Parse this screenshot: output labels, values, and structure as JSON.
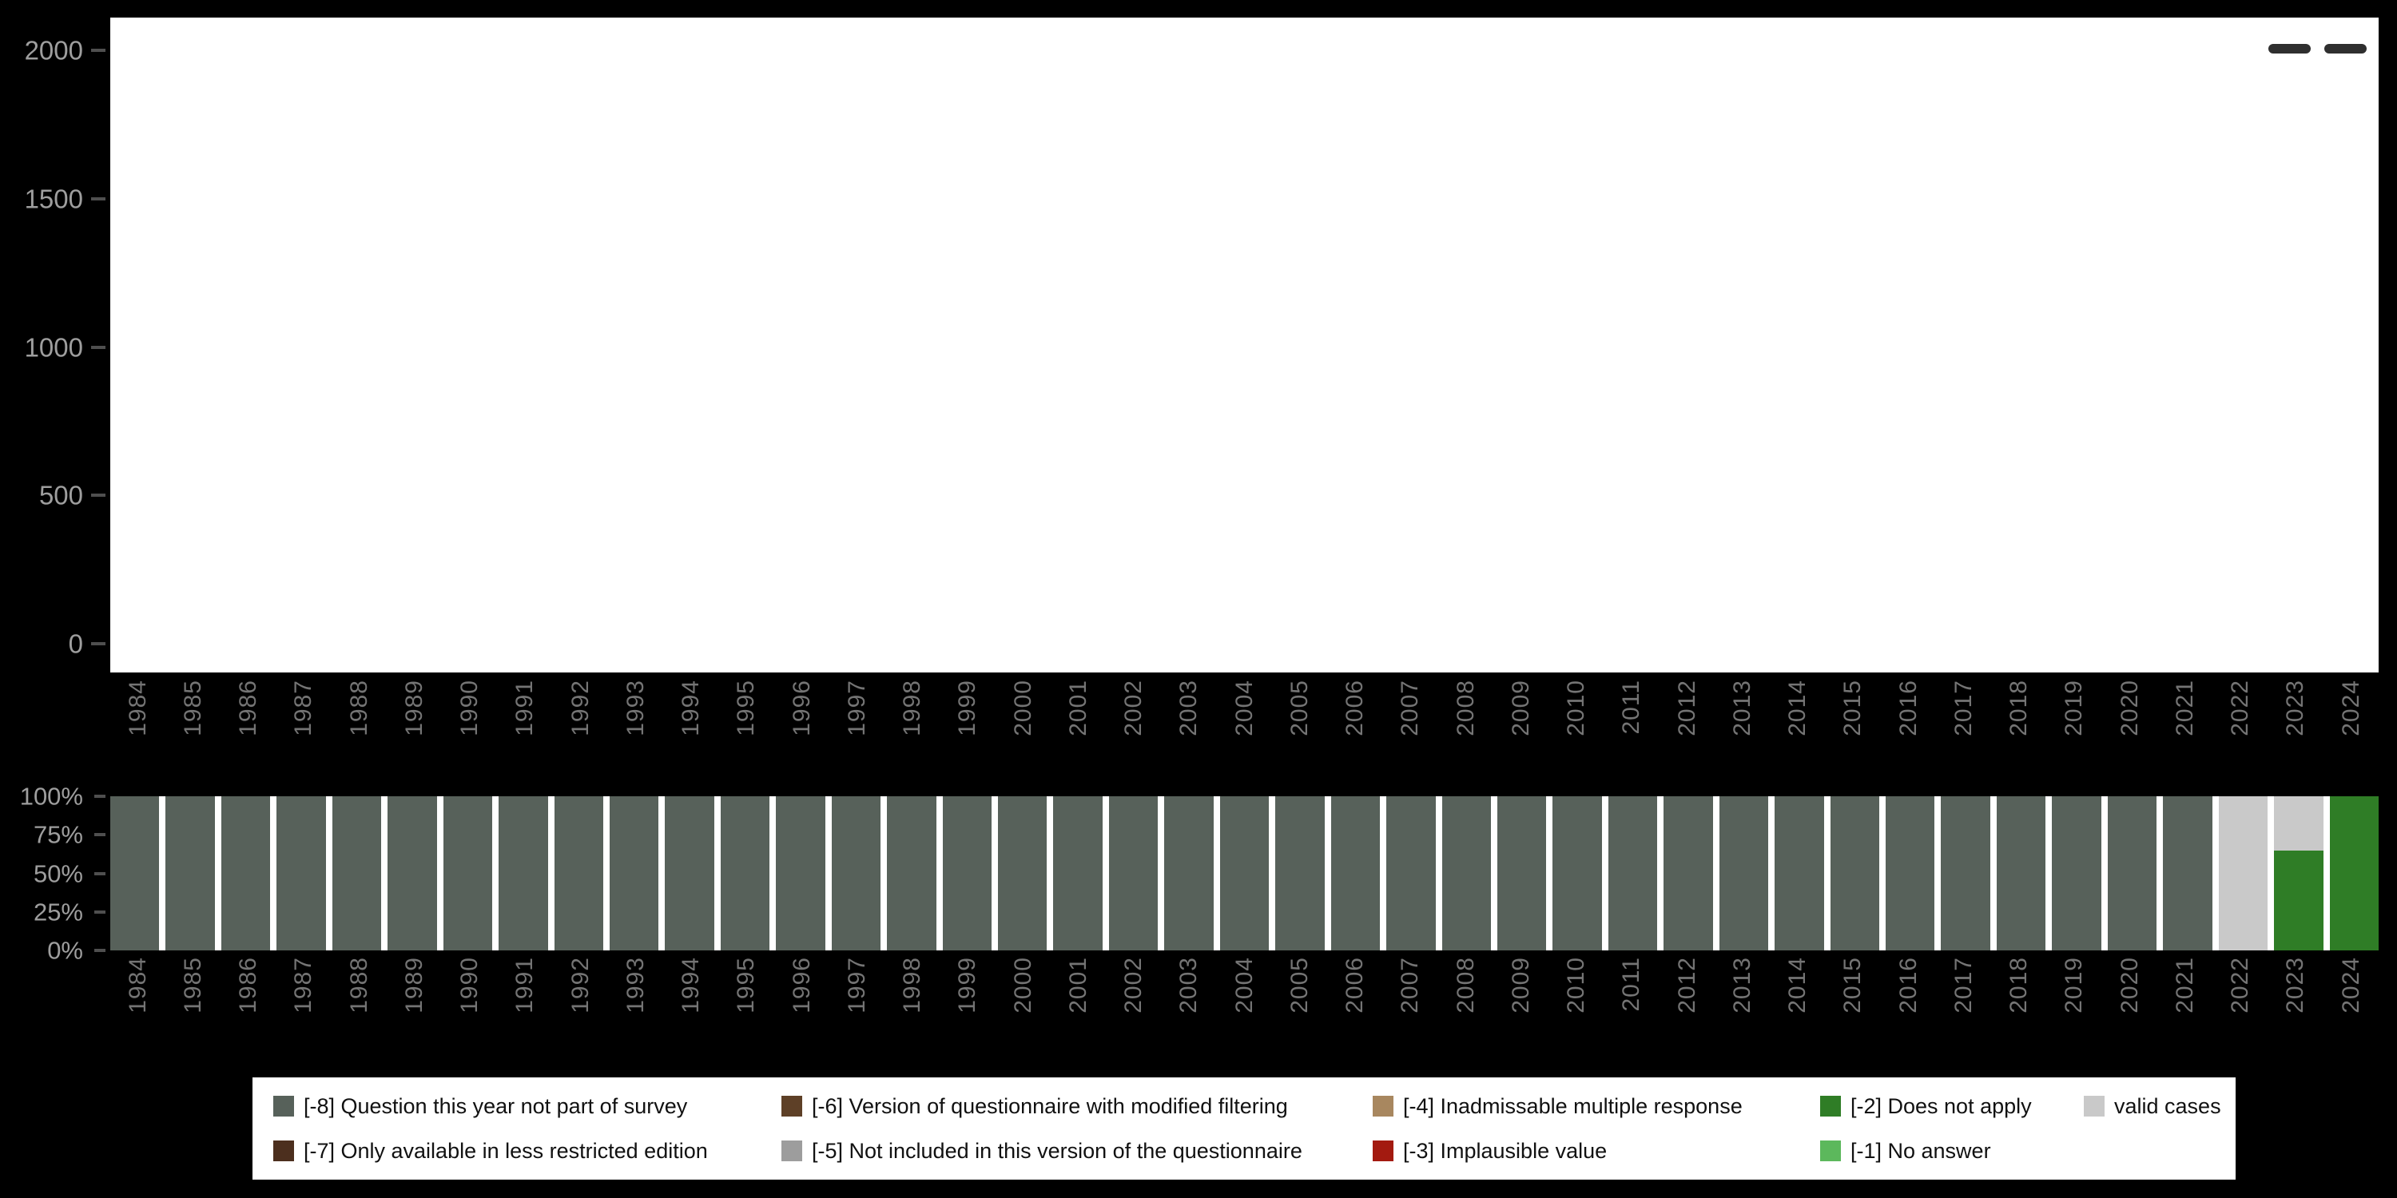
{
  "colors": {
    "background": "#000000",
    "plot_background": "#ffffff",
    "count_axis_label": "#9e9e9e",
    "percent_axis_label": "#9e9e9e",
    "year_label": "#747474",
    "tick_mark": "#4f4f4f",
    "legend_background": "#ffffff",
    "legend_text": "#111111",
    "menu_dash": "#2f2f2f"
  },
  "axes": {
    "count_yticks": [
      "2000",
      "1500",
      "1000",
      "500",
      "0"
    ],
    "percent_yticks": [
      "100%",
      "75%",
      "50%",
      "25%",
      "0%"
    ]
  },
  "legend": {
    "items": [
      {
        "code": "-8",
        "label": "[-8] Question this year not part of survey",
        "color": "#57615A"
      },
      {
        "code": "-6",
        "label": "[-6] Version of questionnaire with modified filtering",
        "color": "#5E4027"
      },
      {
        "code": "-4",
        "label": "[-4] Inadmissable multiple response",
        "color": "#A8875F"
      },
      {
        "code": "-2",
        "label": "[-2] Does not apply",
        "color": "#2F7D26"
      },
      {
        "code": "valid",
        "label": "valid cases",
        "color": "#C9C9C9"
      },
      {
        "code": "-7",
        "label": "[-7] Only available in less restricted edition",
        "color": "#4C2F1E"
      },
      {
        "code": "-5",
        "label": "[-5] Not included in this version of the questionnaire",
        "color": "#9D9D9D"
      },
      {
        "code": "-3",
        "label": "[-3] Implausible value",
        "color": "#A31A10"
      },
      {
        "code": "-1",
        "label": "[-1] No answer",
        "color": "#5CB85C"
      }
    ]
  },
  "chart_data": [
    {
      "type": "bar",
      "title": "",
      "xlabel": "",
      "ylabel": "",
      "ylim": [
        0,
        2000
      ],
      "yticks": [
        0,
        500,
        1000,
        1500,
        2000
      ],
      "categories": [
        "1984",
        "1985",
        "1986",
        "1987",
        "1988",
        "1989",
        "1990",
        "1991",
        "1992",
        "1993",
        "1994",
        "1995",
        "1996",
        "1997",
        "1998",
        "1999",
        "2000",
        "2001",
        "2002",
        "2003",
        "2004",
        "2005",
        "2006",
        "2007",
        "2008",
        "2009",
        "2010",
        "2011",
        "2012",
        "2013",
        "2014",
        "2015",
        "2016",
        "2017",
        "2018",
        "2019",
        "2020",
        "2021",
        "2022",
        "2023",
        "2024"
      ],
      "values": [],
      "note": "Top panel: count axis 0-2000, plot area renders blank white with no visible bars; two dark dash marks in the top-right corner."
    },
    {
      "type": "bar",
      "subtype": "stacked-percent",
      "title": "",
      "xlabel": "",
      "ylabel": "",
      "ylim": [
        0,
        100
      ],
      "yticks": [
        0,
        25,
        50,
        75,
        100
      ],
      "legend_position": "bottom",
      "categories": [
        "1984",
        "1985",
        "1986",
        "1987",
        "1988",
        "1989",
        "1990",
        "1991",
        "1992",
        "1993",
        "1994",
        "1995",
        "1996",
        "1997",
        "1998",
        "1999",
        "2000",
        "2001",
        "2002",
        "2003",
        "2004",
        "2005",
        "2006",
        "2007",
        "2008",
        "2009",
        "2010",
        "2011",
        "2012",
        "2013",
        "2014",
        "2015",
        "2016",
        "2017",
        "2018",
        "2019",
        "2020",
        "2021",
        "2022",
        "2023",
        "2024"
      ],
      "stacks": [
        {
          "year": "1984",
          "segments": [
            {
              "code": "-8",
              "pct": 100
            }
          ]
        },
        {
          "year": "1985",
          "segments": [
            {
              "code": "-8",
              "pct": 100
            }
          ]
        },
        {
          "year": "1986",
          "segments": [
            {
              "code": "-8",
              "pct": 100
            }
          ]
        },
        {
          "year": "1987",
          "segments": [
            {
              "code": "-8",
              "pct": 100
            }
          ]
        },
        {
          "year": "1988",
          "segments": [
            {
              "code": "-8",
              "pct": 100
            }
          ]
        },
        {
          "year": "1989",
          "segments": [
            {
              "code": "-8",
              "pct": 100
            }
          ]
        },
        {
          "year": "1990",
          "segments": [
            {
              "code": "-8",
              "pct": 100
            }
          ]
        },
        {
          "year": "1991",
          "segments": [
            {
              "code": "-8",
              "pct": 100
            }
          ]
        },
        {
          "year": "1992",
          "segments": [
            {
              "code": "-8",
              "pct": 100
            }
          ]
        },
        {
          "year": "1993",
          "segments": [
            {
              "code": "-8",
              "pct": 100
            }
          ]
        },
        {
          "year": "1994",
          "segments": [
            {
              "code": "-8",
              "pct": 100
            }
          ]
        },
        {
          "year": "1995",
          "segments": [
            {
              "code": "-8",
              "pct": 100
            }
          ]
        },
        {
          "year": "1996",
          "segments": [
            {
              "code": "-8",
              "pct": 100
            }
          ]
        },
        {
          "year": "1997",
          "segments": [
            {
              "code": "-8",
              "pct": 100
            }
          ]
        },
        {
          "year": "1998",
          "segments": [
            {
              "code": "-8",
              "pct": 100
            }
          ]
        },
        {
          "year": "1999",
          "segments": [
            {
              "code": "-8",
              "pct": 100
            }
          ]
        },
        {
          "year": "2000",
          "segments": [
            {
              "code": "-8",
              "pct": 100
            }
          ]
        },
        {
          "year": "2001",
          "segments": [
            {
              "code": "-8",
              "pct": 100
            }
          ]
        },
        {
          "year": "2002",
          "segments": [
            {
              "code": "-8",
              "pct": 100
            }
          ]
        },
        {
          "year": "2003",
          "segments": [
            {
              "code": "-8",
              "pct": 100
            }
          ]
        },
        {
          "year": "2004",
          "segments": [
            {
              "code": "-8",
              "pct": 100
            }
          ]
        },
        {
          "year": "2005",
          "segments": [
            {
              "code": "-8",
              "pct": 100
            }
          ]
        },
        {
          "year": "2006",
          "segments": [
            {
              "code": "-8",
              "pct": 100
            }
          ]
        },
        {
          "year": "2007",
          "segments": [
            {
              "code": "-8",
              "pct": 100
            }
          ]
        },
        {
          "year": "2008",
          "segments": [
            {
              "code": "-8",
              "pct": 100
            }
          ]
        },
        {
          "year": "2009",
          "segments": [
            {
              "code": "-8",
              "pct": 100
            }
          ]
        },
        {
          "year": "2010",
          "segments": [
            {
              "code": "-8",
              "pct": 100
            }
          ]
        },
        {
          "year": "2011",
          "segments": [
            {
              "code": "-8",
              "pct": 100
            }
          ]
        },
        {
          "year": "2012",
          "segments": [
            {
              "code": "-8",
              "pct": 100
            }
          ]
        },
        {
          "year": "2013",
          "segments": [
            {
              "code": "-8",
              "pct": 100
            }
          ]
        },
        {
          "year": "2014",
          "segments": [
            {
              "code": "-8",
              "pct": 100
            }
          ]
        },
        {
          "year": "2015",
          "segments": [
            {
              "code": "-8",
              "pct": 100
            }
          ]
        },
        {
          "year": "2016",
          "segments": [
            {
              "code": "-8",
              "pct": 100
            }
          ]
        },
        {
          "year": "2017",
          "segments": [
            {
              "code": "-8",
              "pct": 100
            }
          ]
        },
        {
          "year": "2018",
          "segments": [
            {
              "code": "-8",
              "pct": 100
            }
          ]
        },
        {
          "year": "2019",
          "segments": [
            {
              "code": "-8",
              "pct": 100
            }
          ]
        },
        {
          "year": "2020",
          "segments": [
            {
              "code": "-8",
              "pct": 100
            }
          ]
        },
        {
          "year": "2021",
          "segments": [
            {
              "code": "-8",
              "pct": 100
            }
          ]
        },
        {
          "year": "2022",
          "segments": [
            {
              "code": "valid",
              "pct": 100
            }
          ]
        },
        {
          "year": "2023",
          "segments": [
            {
              "code": "-2",
              "pct": 65
            },
            {
              "code": "valid",
              "pct": 35
            }
          ]
        },
        {
          "year": "2024",
          "segments": [
            {
              "code": "-2",
              "pct": 100
            }
          ]
        }
      ]
    }
  ]
}
